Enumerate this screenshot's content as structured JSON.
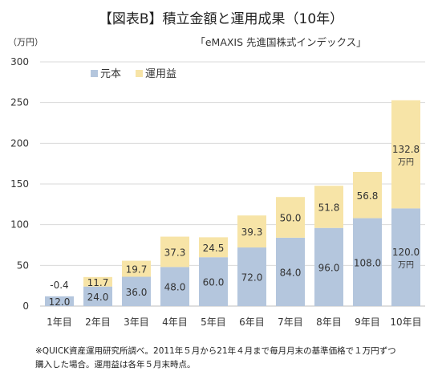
{
  "title": "【図表B】積立金額と運用成果（10年）",
  "subtitle": "「eMAXIS 先進国株式インデックス」",
  "unit_label": "（万円）",
  "footnote": {
    "line1": "※QUICK資産運用研究所調べ。2011年５月から21年４月まで毎月月末の基準価格で１万円ずつ",
    "line2": "購入した場合。運用益は各年５月末時点。"
  },
  "chart_data": {
    "type": "bar",
    "stacked": true,
    "categories": [
      "1年目",
      "2年目",
      "3年目",
      "4年目",
      "5年目",
      "6年目",
      "7年目",
      "8年目",
      "9年目",
      "10年目"
    ],
    "series": [
      {
        "name": "元本",
        "color": "#b4c6dd",
        "values": [
          12.0,
          24.0,
          36.0,
          48.0,
          60.0,
          72.0,
          84.0,
          96.0,
          108.0,
          120.0
        ]
      },
      {
        "name": "運用益",
        "color": "#f7e4a7",
        "values": [
          -0.4,
          11.7,
          19.7,
          37.3,
          24.5,
          39.3,
          50.0,
          51.8,
          56.8,
          132.8
        ]
      }
    ],
    "principal_labels": [
      "12.0",
      "24.0",
      "36.0",
      "48.0",
      "60.0",
      "72.0",
      "84.0",
      "96.0",
      "108.0",
      "120.0"
    ],
    "profit_labels": [
      "-0.4",
      "11.7",
      "19.7",
      "37.3",
      "24.5",
      "39.3",
      "50.0",
      "51.8",
      "56.8",
      "132.8"
    ],
    "unit_suffix": "万円",
    "ylim": [
      0,
      300
    ],
    "yticks": [
      "0",
      "50",
      "100",
      "150",
      "200",
      "250",
      "300"
    ],
    "grid": true,
    "legend_position": "top-left"
  }
}
